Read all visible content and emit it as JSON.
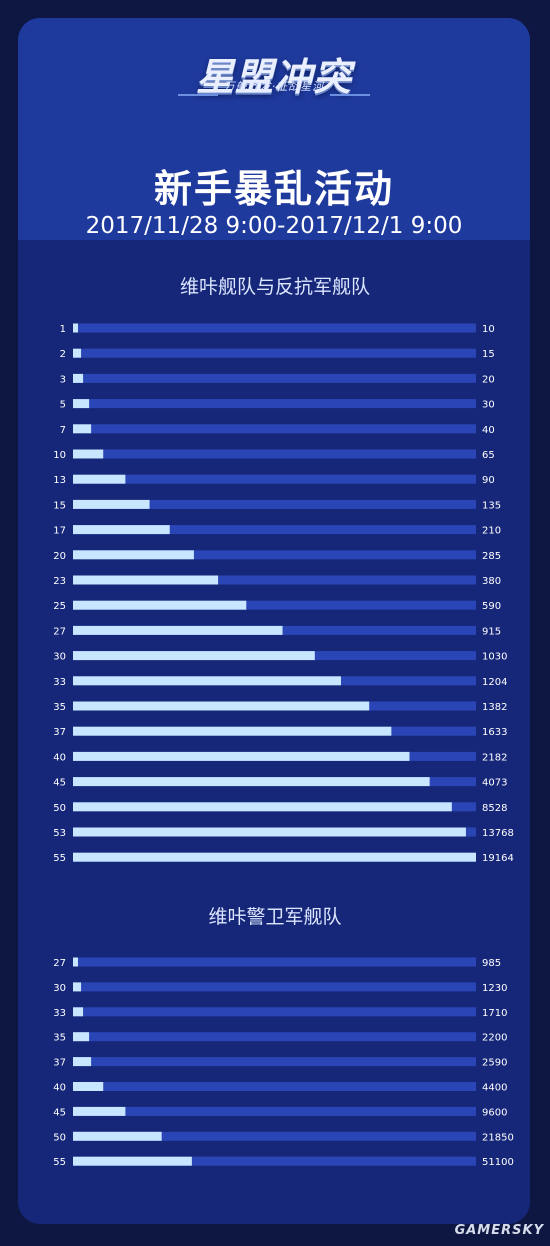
{
  "logo": {
    "main": "星盟冲突",
    "sub": "万舰齐发·征战星河"
  },
  "header": {
    "title": "新手暴乱活动",
    "date_range": "2017/11/28 9:00-2017/12/1 9:00"
  },
  "watermark": "GAMERSKY",
  "colors": {
    "background": "#0d1741",
    "panel": "#16277a",
    "header": "#1f3a9d",
    "track": "#2a45b5",
    "fill": "#c8e6ff",
    "text": "#ffffff"
  },
  "chart_data": [
    {
      "type": "bar",
      "title": "维咔舰队与反抗军舰队",
      "categories": [
        "1",
        "2",
        "3",
        "5",
        "7",
        "10",
        "13",
        "15",
        "17",
        "20",
        "23",
        "25",
        "27",
        "30",
        "33",
        "35",
        "37",
        "40",
        "45",
        "50",
        "53",
        "55"
      ],
      "values": [
        10,
        15,
        20,
        30,
        40,
        65,
        90,
        135,
        210,
        285,
        380,
        590,
        915,
        1030,
        1204,
        1382,
        1633,
        2182,
        4073,
        8528,
        13768,
        19164
      ],
      "fill_fractions": [
        0.01,
        0.02,
        0.025,
        0.04,
        0.045,
        0.075,
        0.13,
        0.19,
        0.24,
        0.3,
        0.36,
        0.43,
        0.52,
        0.6,
        0.665,
        0.735,
        0.79,
        0.835,
        0.885,
        0.94,
        0.975,
        1.0
      ]
    },
    {
      "type": "bar",
      "title": "维咔警卫军舰队",
      "categories": [
        "27",
        "30",
        "33",
        "35",
        "37",
        "40",
        "45",
        "50",
        "55"
      ],
      "values": [
        985,
        1230,
        1710,
        2200,
        2590,
        4400,
        9600,
        21850,
        51100
      ],
      "fill_fractions": [
        0.01,
        0.02,
        0.025,
        0.04,
        0.045,
        0.075,
        0.13,
        0.22,
        0.295
      ]
    }
  ]
}
